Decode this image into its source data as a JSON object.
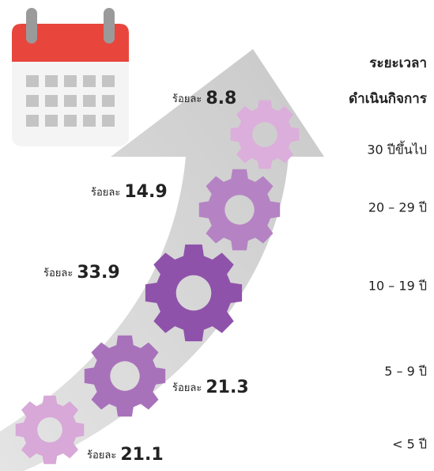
{
  "title": [
    "ระยะเวลา",
    "ดำเนินกิจการ"
  ],
  "value_prefix": "ร้อยละ",
  "items": [
    {
      "category": "30 ปีขึ้นไป",
      "value": 8.8
    },
    {
      "category": "20 – 29 ปี",
      "value": 14.9
    },
    {
      "category": "10 – 19 ปี",
      "value": 33.9
    },
    {
      "category": "5 – 9 ปี",
      "value": 21.3
    },
    {
      "category": "< 5 ปี",
      "value": 21.1
    }
  ]
}
